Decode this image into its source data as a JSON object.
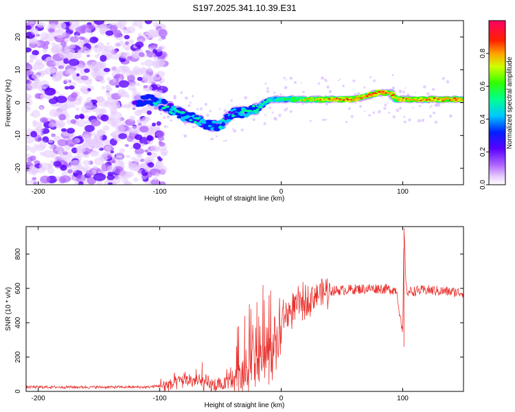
{
  "title": "S197.2025.341.10.39.E31",
  "chart_data": [
    {
      "type": "heatmap",
      "name": "spectrogram",
      "xlabel": "Height of straight line (km)",
      "ylabel": "Frequency (Hz)",
      "xlim": [
        -210,
        150
      ],
      "ylim": [
        -25,
        25
      ],
      "xticks": [
        -200,
        -100,
        0,
        100
      ],
      "yticks": [
        -20,
        -10,
        0,
        10,
        20
      ],
      "colorbar": {
        "label": "Normalized spectral amplitude",
        "range": [
          0,
          1
        ],
        "ticks": [
          0.0,
          0.2,
          0.4,
          0.6,
          0.8
        ]
      },
      "ridge_frequency": [
        [
          -120,
          0
        ],
        [
          -110,
          1
        ],
        [
          -100,
          0
        ],
        [
          -90,
          -2
        ],
        [
          -80,
          -4
        ],
        [
          -70,
          -5
        ],
        [
          -60,
          -7
        ],
        [
          -50,
          -7
        ],
        [
          -40,
          -3
        ],
        [
          -30,
          -3
        ],
        [
          -20,
          -2
        ],
        [
          -10,
          1
        ],
        [
          0,
          1
        ],
        [
          20,
          1
        ],
        [
          40,
          1
        ],
        [
          60,
          1
        ],
        [
          70,
          2
        ],
        [
          80,
          3
        ],
        [
          90,
          3
        ],
        [
          95,
          1
        ],
        [
          100,
          1
        ],
        [
          120,
          1
        ],
        [
          150,
          1
        ]
      ],
      "ridge_amplitude": [
        [
          -120,
          0.3
        ],
        [
          -100,
          0.45
        ],
        [
          -80,
          0.5
        ],
        [
          -60,
          0.45
        ],
        [
          -40,
          0.5
        ],
        [
          -20,
          0.5
        ],
        [
          0,
          0.6
        ],
        [
          20,
          0.8
        ],
        [
          40,
          0.9
        ],
        [
          60,
          0.95
        ],
        [
          80,
          1.0
        ],
        [
          100,
          0.9
        ],
        [
          150,
          0.95
        ]
      ],
      "noise_region_x": [
        -210,
        -100
      ]
    },
    {
      "type": "line",
      "name": "snr",
      "xlabel": "Height of straight line (km)",
      "ylabel": "SNR (10 * v/v)",
      "xlim": [
        -210,
        150
      ],
      "ylim": [
        0,
        960
      ],
      "xticks": [
        -200,
        -100,
        0,
        100
      ],
      "yticks": [
        0,
        200,
        400,
        600,
        800
      ],
      "color": "#e8302c",
      "envelope": [
        [
          -210,
          25
        ],
        [
          -110,
          25
        ],
        [
          -90,
          40
        ],
        [
          -80,
          70
        ],
        [
          -70,
          60
        ],
        [
          -60,
          40
        ],
        [
          -50,
          30
        ],
        [
          -40,
          110
        ],
        [
          -30,
          200
        ],
        [
          -20,
          280
        ],
        [
          -10,
          350
        ],
        [
          0,
          420
        ],
        [
          10,
          480
        ],
        [
          20,
          530
        ],
        [
          30,
          570
        ],
        [
          40,
          585
        ],
        [
          60,
          595
        ],
        [
          80,
          600
        ],
        [
          95,
          590
        ],
        [
          100,
          320
        ],
        [
          101,
          950
        ],
        [
          103,
          580
        ],
        [
          120,
          590
        ],
        [
          150,
          575
        ]
      ],
      "spikes": [
        [
          -80,
          80
        ],
        [
          -70,
          130
        ],
        [
          -65,
          170
        ],
        [
          -35,
          380
        ],
        [
          -30,
          440
        ],
        [
          -25,
          480
        ],
        [
          -20,
          520
        ],
        [
          -15,
          620
        ],
        [
          -10,
          560
        ],
        [
          101,
          950
        ],
        [
          101,
          260
        ]
      ]
    }
  ]
}
